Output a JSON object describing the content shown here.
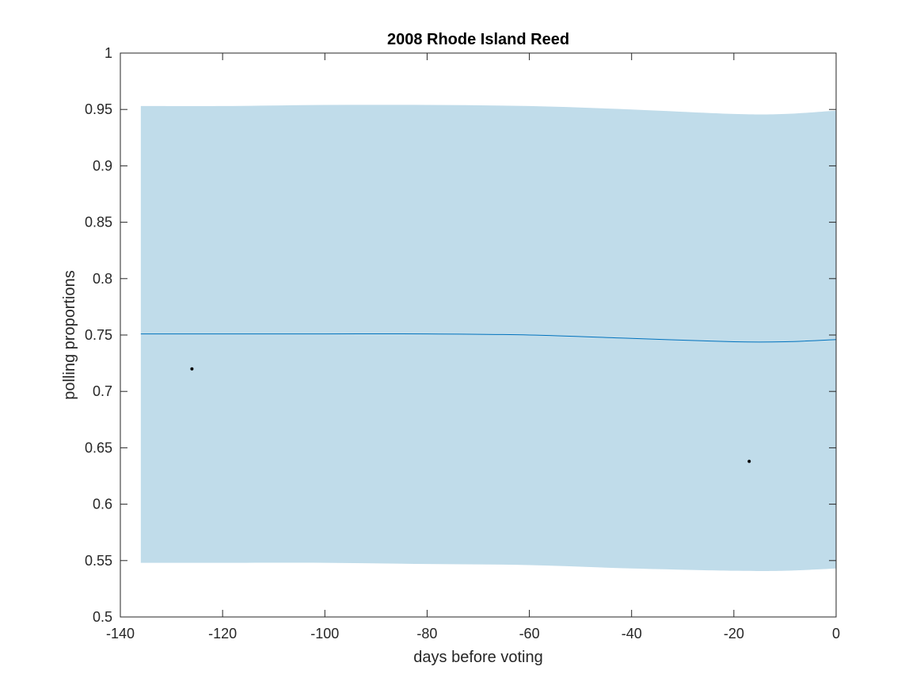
{
  "chart_data": {
    "type": "line",
    "title": "2008 Rhode Island Reed",
    "xlabel": "days before voting",
    "ylabel": "polling proportions",
    "xlim": [
      -140,
      0
    ],
    "ylim": [
      0.5,
      1
    ],
    "x_ticks": [
      -140,
      -120,
      -100,
      -80,
      -60,
      -40,
      -20,
      0
    ],
    "y_ticks": [
      0.5,
      0.55,
      0.6,
      0.65,
      0.7,
      0.75,
      0.8,
      0.85,
      0.9,
      0.95,
      1
    ],
    "x_tick_labels": [
      "-140",
      "-120",
      "-100",
      "-80",
      "-60",
      "-40",
      "-20",
      "0"
    ],
    "y_tick_labels": [
      "0.5",
      "0.55",
      "0.6",
      "0.65",
      "0.7",
      "0.75",
      "0.8",
      "0.85",
      "0.9",
      "0.95",
      "1"
    ],
    "grid": false,
    "box": true,
    "series": [
      {
        "kind": "band",
        "color": "#c0dcea",
        "x": [
          -136,
          -120,
          -100,
          -80,
          -60,
          -40,
          -20,
          -10,
          0
        ],
        "upper": [
          0.953,
          0.953,
          0.954,
          0.954,
          0.953,
          0.95,
          0.946,
          0.946,
          0.949
        ],
        "lower": [
          0.548,
          0.548,
          0.548,
          0.547,
          0.546,
          0.543,
          0.541,
          0.541,
          0.543
        ]
      },
      {
        "kind": "line",
        "color": "#0072bd",
        "x": [
          -136,
          -120,
          -100,
          -80,
          -60,
          -40,
          -20,
          -10,
          0
        ],
        "y": [
          0.751,
          0.751,
          0.751,
          0.751,
          0.75,
          0.747,
          0.744,
          0.744,
          0.746
        ]
      },
      {
        "kind": "scatter",
        "color": "#000000",
        "x": [
          -126,
          -17
        ],
        "y": [
          0.72,
          0.638
        ]
      }
    ]
  }
}
